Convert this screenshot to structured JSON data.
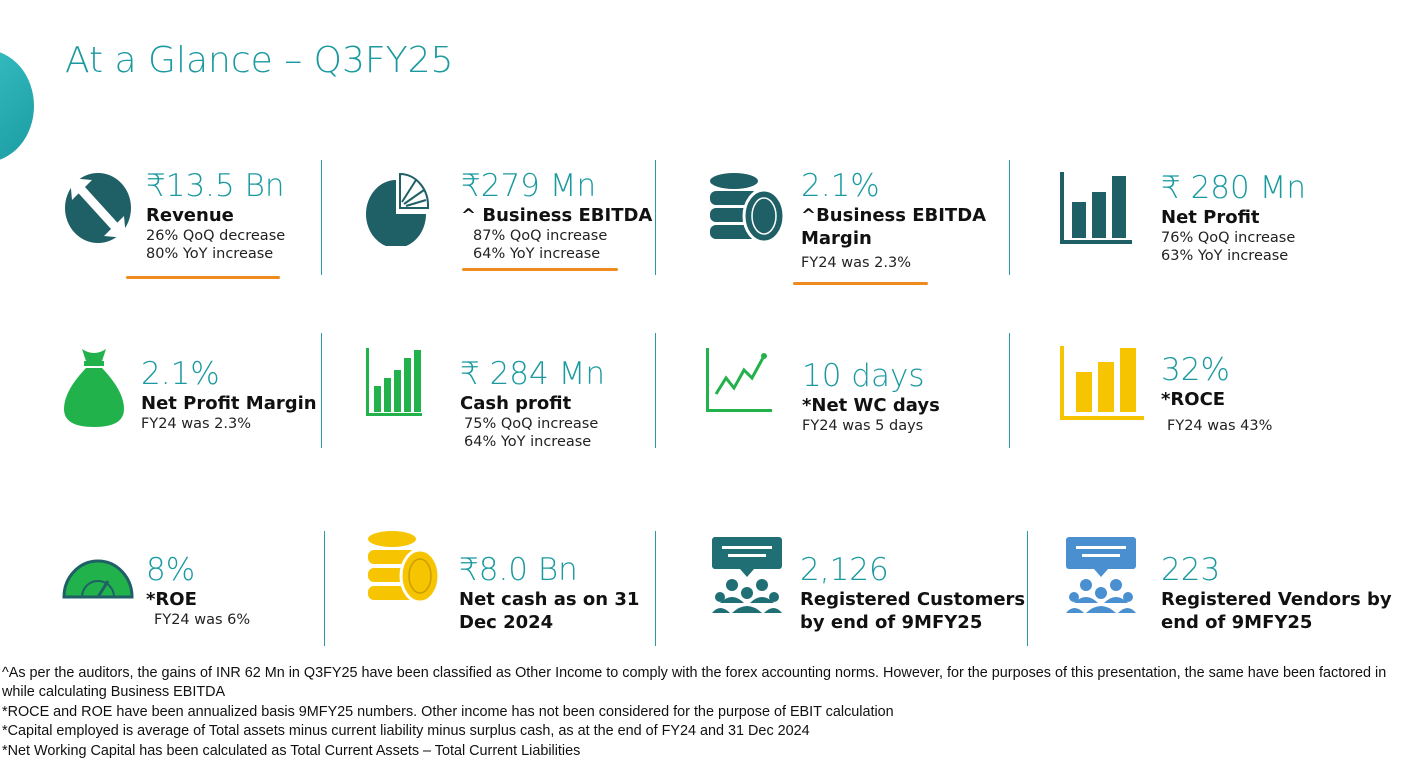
{
  "title": "At a Glance – Q3FY25",
  "stats": [
    {
      "value": "₹13.5 Bn",
      "label": "Revenue",
      "subs": [
        "26% QoQ decrease",
        "80% YoY increase"
      ]
    },
    {
      "value": "₹279 Mn",
      "label": "^ Business EBITDA",
      "subs": [
        "87% QoQ increase",
        "64% YoY increase"
      ]
    },
    {
      "value": "2.1%",
      "label": "^Business EBITDA",
      "label2": "Margin",
      "subs": [
        "FY24 was 2.3%"
      ]
    },
    {
      "value": "₹ 280 Mn",
      "label": "Net Profit",
      "subs": [
        "76% QoQ increase",
        "63% YoY increase"
      ]
    },
    {
      "value": "2.1%",
      "label": "Net Profit Margin",
      "subs": [
        "FY24 was 2.3%"
      ]
    },
    {
      "value": "₹ 284 Mn",
      "label": "Cash profit",
      "subs": [
        "75% QoQ increase",
        "64% YoY increase"
      ]
    },
    {
      "value": "10 days",
      "label": "*Net WC days",
      "subs": [
        "FY24 was 5 days"
      ]
    },
    {
      "value": "32%",
      "label": "*ROCE",
      "subs": [
        "FY24 was 43%"
      ]
    },
    {
      "value": "8%",
      "label": "*ROE",
      "subs": [
        "FY24 was 6%"
      ]
    },
    {
      "value": "₹8.0 Bn",
      "label": "Net cash as on 31",
      "label2": "Dec 2024",
      "subs": []
    },
    {
      "value": "2,126",
      "label": "Registered Customers",
      "label2": "by end of 9MFY25",
      "subs": []
    },
    {
      "value": "223",
      "label": "Registered Vendors by",
      "label2": "end of 9MFY25",
      "subs": []
    }
  ],
  "footnotes": [
    "^As per the auditors, the gains of INR 62 Mn in Q3FY25 have been classified as Other Income to comply with the forex accounting norms. However, for the purposes of this presentation, the same have been factored in while calculating Business EBITDA",
    "*ROCE and ROE have been annualized basis 9MFY25 numbers. Other income has not been considered for the purpose of EBIT calculation",
    "*Capital employed is average of Total assets minus current liability minus surplus cash, as at the end of FY24 and 31 Dec 2024",
    "*Net Working Capital has been calculated as Total Current Assets – Total Current Liabilities"
  ],
  "icons": [
    "resize-circle-icon",
    "pie-chart-icon",
    "database-coin-icon",
    "bar-chart-icon",
    "money-bag-icon",
    "rising-bar-chart-icon",
    "line-chart-icon",
    "yellow-bar-chart-icon",
    "gauge-icon",
    "coin-stack-icon",
    "customers-chat-icon",
    "vendors-chat-icon"
  ],
  "colors": {
    "teal": "#1a9aa0",
    "dark_teal": "#1f5f66",
    "green": "#22b24c",
    "yellow": "#f6c400",
    "blue": "#4a90d0",
    "underline": "#ef8a1f"
  }
}
